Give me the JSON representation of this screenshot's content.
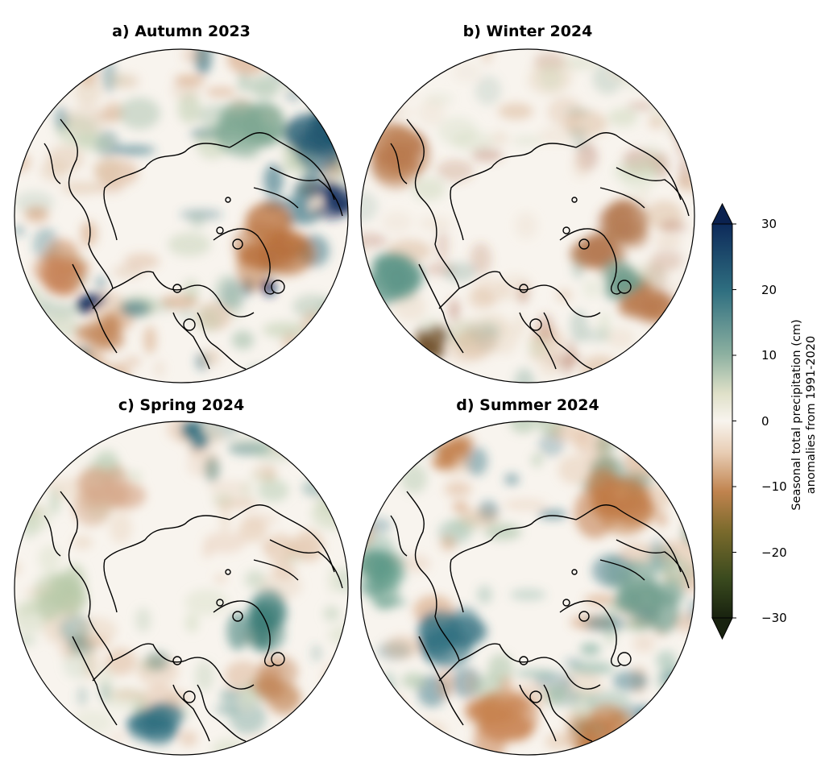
{
  "panels": [
    {
      "id": "a",
      "title": "a) Autumn 2023",
      "pattern": "autumn"
    },
    {
      "id": "b",
      "title": "b) Winter 2024",
      "pattern": "winter"
    },
    {
      "id": "c",
      "title": "c) Spring 2024",
      "pattern": "spring"
    },
    {
      "id": "d",
      "title": "d) Summer 2024",
      "pattern": "summer"
    }
  ],
  "colorbar": {
    "label_line1": "Seasonal total precipitation (cm)",
    "label_line2": "anomalies from 1991-2020",
    "min": -30,
    "max": 30,
    "ticks": [
      "30",
      "20",
      "10",
      "0",
      "−10",
      "−20",
      "−30"
    ],
    "extend": "both",
    "colors": {
      "low": "#1f2a12",
      "dry": "#b5703a",
      "neutral": "#f8f4ee",
      "wet": "#2f7f7a",
      "high": "#0b2250"
    }
  }
}
